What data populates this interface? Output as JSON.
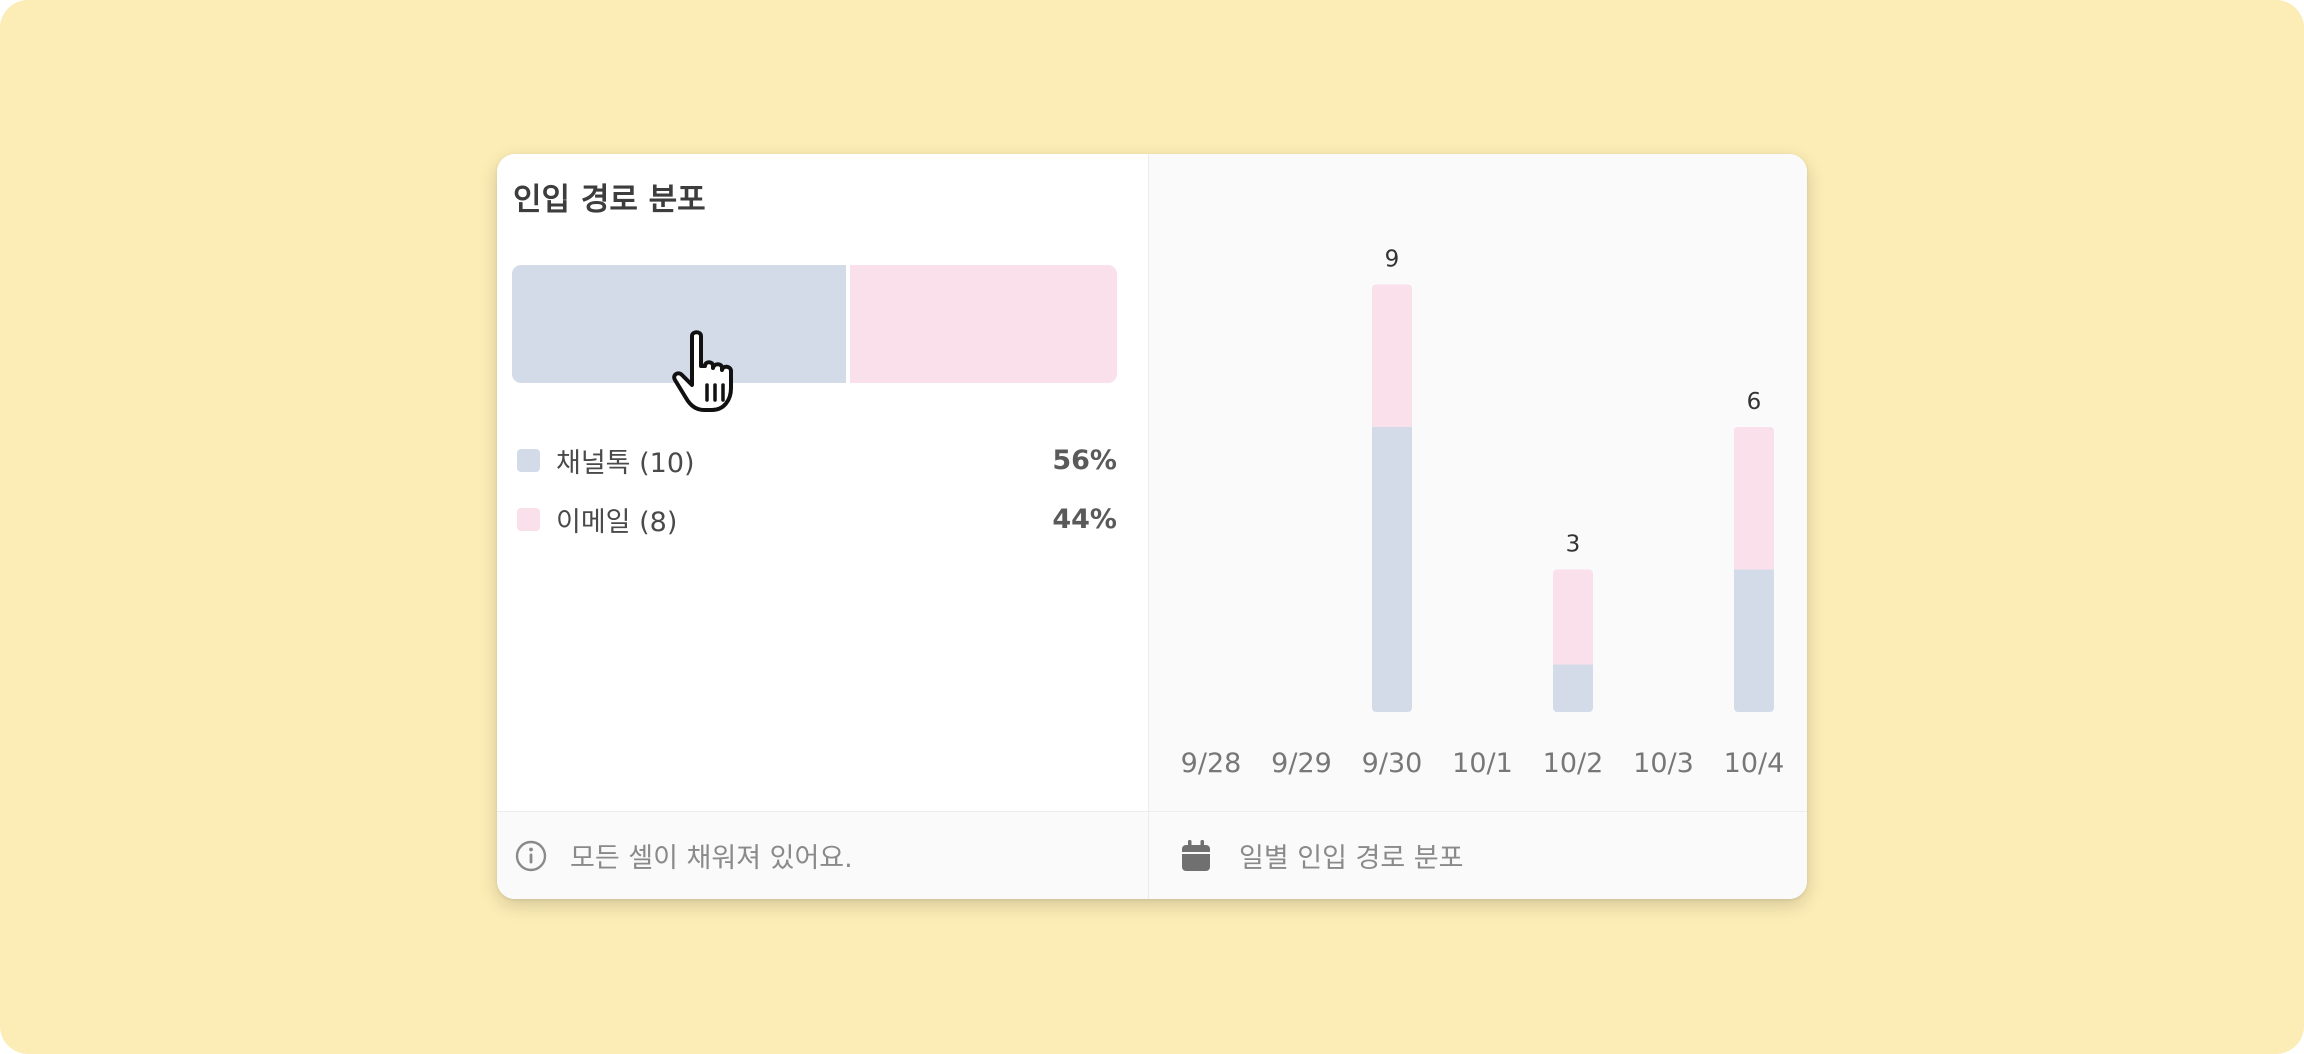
{
  "card": {
    "title": "인입 경로 분포",
    "ratio_bar": [
      {
        "name": "채널톡",
        "value": 10,
        "color": "#d4dbe8"
      },
      {
        "name": "이메일",
        "value": 8,
        "color": "#f9e0ea"
      }
    ],
    "legend": [
      {
        "label": "채널톡 (10)",
        "percent": "56%",
        "color": "#d4dbe8"
      },
      {
        "label": "이메일 (8)",
        "percent": "44%",
        "color": "#f9e0ea"
      }
    ],
    "footer_left": {
      "icon": "info-icon",
      "text": "모든 셀이 채워져 있어요."
    },
    "footer_right": {
      "icon": "calendar-icon",
      "text": "일별 인입 경로 분포"
    }
  },
  "chart_data": {
    "type": "bar",
    "stacked": true,
    "categories": [
      "9/28",
      "9/29",
      "9/30",
      "10/1",
      "10/2",
      "10/3",
      "10/4"
    ],
    "series": [
      {
        "name": "채널톡",
        "values": [
          0,
          0,
          6,
          0,
          1,
          0,
          3
        ],
        "color": "#d4dbe8"
      },
      {
        "name": "이메일",
        "values": [
          0,
          0,
          3,
          0,
          2,
          0,
          3
        ],
        "color": "#f9e0ea"
      }
    ],
    "totals": [
      null,
      null,
      "9",
      null,
      "3",
      null,
      "6"
    ]
  }
}
